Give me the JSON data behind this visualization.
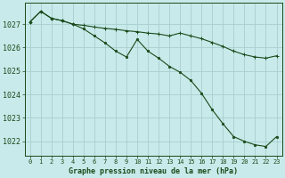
{
  "background_color": "#c8eaea",
  "grid_color": "#a8cece",
  "line_color": "#1a4a1a",
  "ylim": [
    1021.4,
    1027.9
  ],
  "yticks": [
    1022,
    1023,
    1024,
    1025,
    1026,
    1027
  ],
  "xlim": [
    -0.5,
    23.5
  ],
  "xticks": [
    0,
    1,
    2,
    3,
    4,
    5,
    6,
    7,
    8,
    9,
    10,
    11,
    12,
    13,
    14,
    15,
    16,
    17,
    18,
    19,
    20,
    21,
    22,
    23
  ],
  "xlabel": "Graphe pression niveau de la mer (hPa)",
  "series1_x": [
    0,
    1,
    2,
    3,
    4,
    5,
    6,
    7,
    8,
    9,
    10,
    11,
    12,
    13,
    14,
    15,
    16,
    17,
    18,
    19,
    20,
    21,
    22,
    23
  ],
  "series1_y": [
    1027.1,
    1027.55,
    1027.25,
    1027.15,
    1027.0,
    1026.95,
    1026.88,
    1026.82,
    1026.78,
    1026.72,
    1026.68,
    1026.62,
    1026.58,
    1026.5,
    1026.62,
    1026.5,
    1026.38,
    1026.22,
    1026.05,
    1025.85,
    1025.7,
    1025.6,
    1025.55,
    1025.65
  ],
  "series2_x": [
    0,
    1,
    2,
    3,
    4,
    5,
    6,
    7,
    8,
    9,
    10,
    11,
    12,
    13,
    14,
    15,
    16,
    17,
    18,
    19,
    20,
    21,
    22,
    23
  ],
  "series2_y": [
    1027.1,
    1027.55,
    1027.25,
    1027.15,
    1027.0,
    1026.8,
    1026.5,
    1026.2,
    1025.85,
    1025.6,
    1026.35,
    1025.85,
    1025.55,
    1025.2,
    1024.95,
    1024.6,
    1024.05,
    1023.35,
    1022.75,
    1022.2,
    1022.0,
    1021.85,
    1021.78,
    1022.2
  ]
}
